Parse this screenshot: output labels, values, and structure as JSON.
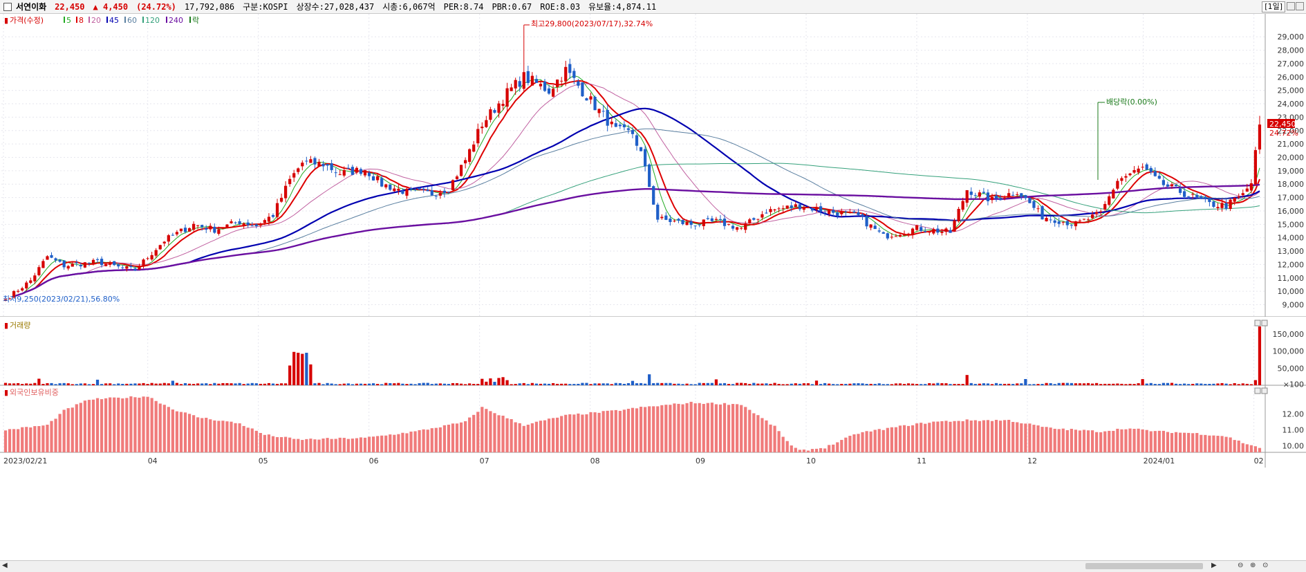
{
  "header": {
    "name": "서연이화",
    "price": "22,450",
    "change": "▲ 4,450",
    "change_pct": "(24.72%)",
    "volume": "17,792,086",
    "market": "구분:KOSPI",
    "shares": "상장수:27,028,437",
    "cap": "시총:6,067억",
    "per": "PER:8.74",
    "pbr": "PBR:0.67",
    "roe": "ROE:8.03",
    "float": "유보율:4,874.11",
    "period": "[1일]"
  },
  "legend": {
    "price_label": "가격(수정)",
    "ma_labels": [
      "5",
      "8",
      "20",
      "45",
      "60",
      "120",
      "240"
    ],
    "ex_label": "락"
  },
  "volume_panel": {
    "title": "거래량"
  },
  "foreign_panel": {
    "title": "외국인보유비중"
  },
  "annotations": {
    "high": "최고29,800(2023/07/17),32.74%",
    "low": "최저9,250(2023/02/21),56.80%",
    "ex_div": "배당락(0.00%)"
  },
  "price_badge": {
    "price": "22,450",
    "pct": "24.72%"
  },
  "colors": {
    "up": "#d60000",
    "down": "#1f5fc8",
    "ma5": "#22aa22",
    "ma8": "#dd0000",
    "ma20": "#c060a0",
    "ma45": "#0000b0",
    "ma60": "#5a7fa0",
    "ma120": "#33a07a",
    "ma240": "#6a0fa0",
    "foreign_bar": "#f07a7a",
    "volume_label": "#9a7a00"
  },
  "chart_data": {
    "type": "candlestick",
    "x_labels": [
      "2023/02/21",
      "04",
      "05",
      "06",
      "07",
      "08",
      "09",
      "10",
      "11",
      "12",
      "2024/01",
      "02"
    ],
    "price_axis": [
      "9,000",
      "10,000",
      "11,000",
      "12,000",
      "13,000",
      "14,000",
      "15,000",
      "16,000",
      "17,000",
      "18,000",
      "19,000",
      "20,000",
      "21,000",
      "22,000",
      "23,000",
      "24,000",
      "25,000",
      "26,000",
      "27,000",
      "28,000",
      "29,000"
    ],
    "price_range": [
      8200,
      30200
    ],
    "volume_axis": [
      "×100",
      "50,000",
      "100,000",
      "150,000"
    ],
    "volume_range": [
      0,
      180000
    ],
    "foreign_axis": [
      "10.00",
      "11.00",
      "12.00"
    ],
    "foreign_range": [
      9.6,
      13.4
    ],
    "close_anchors": [
      [
        0,
        9400
      ],
      [
        6,
        10800
      ],
      [
        10,
        12600
      ],
      [
        14,
        11900
      ],
      [
        22,
        12200
      ],
      [
        27,
        11800
      ],
      [
        31,
        11600
      ],
      [
        38,
        13800
      ],
      [
        45,
        15000
      ],
      [
        50,
        14600
      ],
      [
        56,
        15200
      ],
      [
        60,
        14900
      ],
      [
        64,
        15700
      ],
      [
        68,
        18300
      ],
      [
        71,
        19600
      ],
      [
        76,
        19500
      ],
      [
        80,
        18800
      ],
      [
        86,
        19100
      ],
      [
        90,
        18000
      ],
      [
        96,
        17400
      ],
      [
        102,
        17300
      ],
      [
        106,
        17700
      ],
      [
        110,
        19800
      ],
      [
        114,
        22500
      ],
      [
        120,
        24800
      ],
      [
        124,
        26000
      ],
      [
        130,
        25000
      ],
      [
        134,
        26500
      ],
      [
        140,
        24200
      ],
      [
        146,
        22000
      ],
      [
        150,
        21800
      ],
      [
        152,
        20300
      ],
      [
        156,
        15400
      ],
      [
        164,
        15000
      ],
      [
        170,
        15200
      ],
      [
        176,
        14700
      ],
      [
        182,
        16000
      ],
      [
        190,
        16400
      ],
      [
        196,
        16000
      ],
      [
        204,
        15600
      ],
      [
        210,
        14100
      ],
      [
        218,
        14700
      ],
      [
        226,
        14400
      ],
      [
        230,
        17600
      ],
      [
        236,
        16800
      ],
      [
        242,
        17500
      ],
      [
        248,
        15600
      ],
      [
        256,
        15000
      ],
      [
        262,
        15800
      ],
      [
        266,
        18300
      ],
      [
        272,
        19200
      ],
      [
        276,
        18100
      ],
      [
        282,
        17300
      ],
      [
        288,
        16500
      ],
      [
        292,
        16400
      ],
      [
        296,
        17200
      ],
      [
        298,
        18100
      ],
      [
        300,
        22450
      ]
    ],
    "events": {
      "high_idx": 124,
      "high": 29800,
      "low_idx": 0,
      "low": 9250,
      "ex_div_idx": 270
    }
  }
}
